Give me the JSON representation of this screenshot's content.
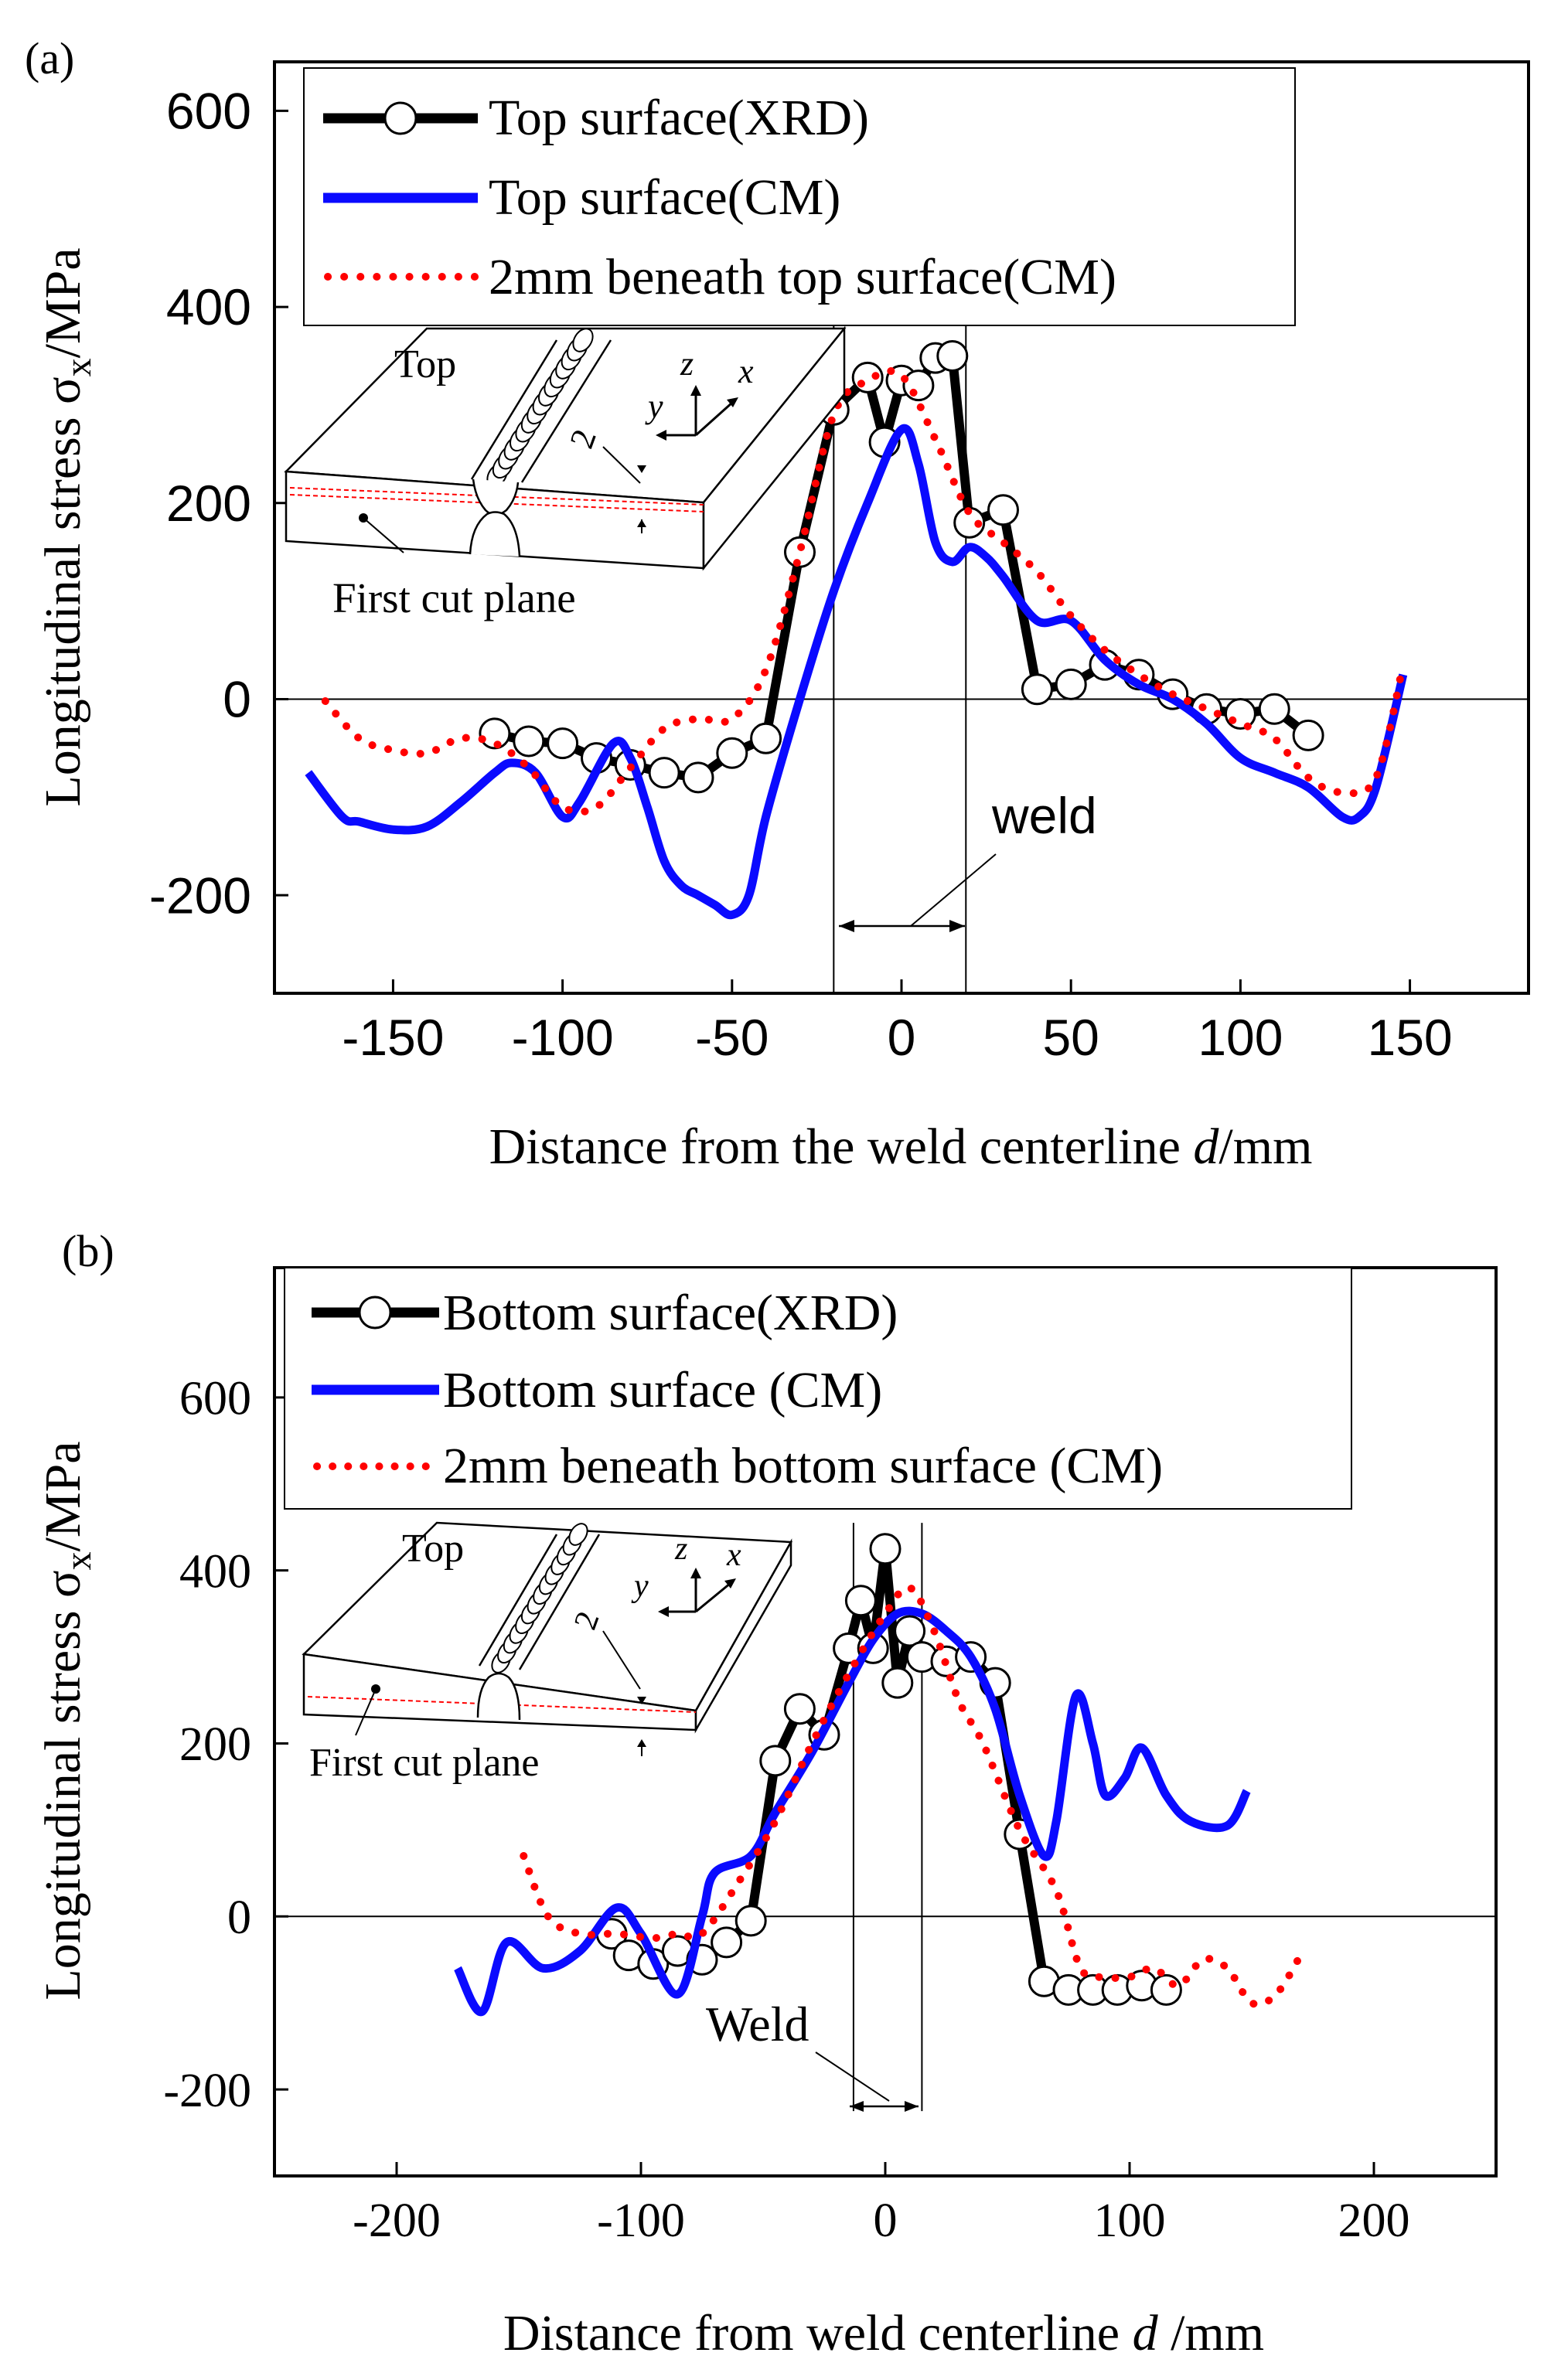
{
  "chart_data": [
    {
      "type": "line",
      "panel_label": "(a)",
      "xlabel_main": "Distance from the weld centerline ",
      "xlabel_var": "d",
      "xlabel_unit": "/mm",
      "ylabel_main": "Longitudinal stress σ",
      "ylabel_sub": "x",
      "ylabel_unit": "/MPa",
      "xlim": [
        -185,
        185
      ],
      "ylim": [
        -300,
        650
      ],
      "xticks": [
        -150,
        -100,
        -50,
        0,
        50,
        100,
        150
      ],
      "xtick_labels": [
        "-150",
        "-100",
        "-50",
        "0",
        "50",
        "100",
        "150"
      ],
      "yticks": [
        -200,
        0,
        200,
        400,
        600
      ],
      "ytick_labels": [
        "-200",
        "0",
        "200",
        "400",
        "600"
      ],
      "weld_lines": [
        -20,
        19
      ],
      "weld_label": "weld",
      "inset": {
        "top_label": "Top",
        "axis_z": "z",
        "axis_x": "x",
        "axis_y": "y",
        "depth_label": "2",
        "cut_plane_label": "First cut plane"
      },
      "legend": {
        "position": "top-left"
      },
      "series": [
        {
          "name": "Top surface(XRD)",
          "style": "line-circles",
          "color": "#000000",
          "points": [
            [
              -120,
              -35
            ],
            [
              -110,
              -43
            ],
            [
              -100,
              -45
            ],
            [
              -90,
              -60
            ],
            [
              -80,
              -67
            ],
            [
              -70,
              -75
            ],
            [
              -60,
              -80
            ],
            [
              -50,
              -55
            ],
            [
              -40,
              -40
            ],
            [
              -30,
              150
            ],
            [
              -20,
              295
            ],
            [
              -10,
              328
            ],
            [
              -5,
              262
            ],
            [
              0,
              325
            ],
            [
              5,
              320
            ],
            [
              10,
              348
            ],
            [
              15,
              350
            ],
            [
              20,
              180
            ],
            [
              30,
              193
            ],
            [
              40,
              10
            ],
            [
              50,
              15
            ],
            [
              60,
              35
            ],
            [
              70,
              25
            ],
            [
              80,
              5
            ],
            [
              90,
              -10
            ],
            [
              100,
              -15
            ],
            [
              110,
              -10
            ],
            [
              120,
              -37
            ]
          ]
        },
        {
          "name": "Top surface(CM)",
          "style": "solid",
          "color": "#0a0aff",
          "points": [
            [
              -175,
              -75
            ],
            [
              -165,
              -120
            ],
            [
              -160,
              -125
            ],
            [
              -150,
              -133
            ],
            [
              -140,
              -130
            ],
            [
              -130,
              -105
            ],
            [
              -120,
              -75
            ],
            [
              -115,
              -65
            ],
            [
              -108,
              -75
            ],
            [
              -100,
              -120
            ],
            [
              -95,
              -105
            ],
            [
              -85,
              -45
            ],
            [
              -80,
              -60
            ],
            [
              -75,
              -110
            ],
            [
              -70,
              -165
            ],
            [
              -65,
              -190
            ],
            [
              -60,
              -200
            ],
            [
              -55,
              -210
            ],
            [
              -50,
              -220
            ],
            [
              -45,
              -200
            ],
            [
              -40,
              -120
            ],
            [
              -30,
              0
            ],
            [
              -20,
              110
            ],
            [
              -10,
              200
            ],
            [
              0,
              275
            ],
            [
              5,
              240
            ],
            [
              10,
              160
            ],
            [
              15,
              140
            ],
            [
              20,
              155
            ],
            [
              25,
              145
            ],
            [
              30,
              125
            ],
            [
              40,
              80
            ],
            [
              50,
              80
            ],
            [
              60,
              40
            ],
            [
              70,
              15
            ],
            [
              80,
              0
            ],
            [
              90,
              -25
            ],
            [
              100,
              -60
            ],
            [
              110,
              -75
            ],
            [
              120,
              -90
            ],
            [
              130,
              -120
            ],
            [
              135,
              -120
            ],
            [
              140,
              -90
            ],
            [
              148,
              25
            ]
          ]
        },
        {
          "name": "2mm beneath top surface(CM)",
          "style": "dotted",
          "color": "#ff0000",
          "points": [
            [
              -170,
              -2
            ],
            [
              -160,
              -40
            ],
            [
              -150,
              -52
            ],
            [
              -140,
              -55
            ],
            [
              -130,
              -40
            ],
            [
              -120,
              -45
            ],
            [
              -110,
              -70
            ],
            [
              -100,
              -110
            ],
            [
              -90,
              -110
            ],
            [
              -80,
              -70
            ],
            [
              -70,
              -30
            ],
            [
              -60,
              -20
            ],
            [
              -50,
              -20
            ],
            [
              -40,
              30
            ],
            [
              -30,
              150
            ],
            [
              -20,
              290
            ],
            [
              -10,
              325
            ],
            [
              0,
              330
            ],
            [
              10,
              265
            ],
            [
              20,
              190
            ],
            [
              30,
              160
            ],
            [
              40,
              130
            ],
            [
              50,
              85
            ],
            [
              60,
              50
            ],
            [
              70,
              25
            ],
            [
              80,
              5
            ],
            [
              90,
              -10
            ],
            [
              100,
              -25
            ],
            [
              110,
              -40
            ],
            [
              120,
              -80
            ],
            [
              130,
              -95
            ],
            [
              140,
              -80
            ],
            [
              148,
              35
            ]
          ]
        }
      ]
    },
    {
      "type": "line",
      "panel_label": "(b)",
      "xlabel_main": "Distance from weld centerline ",
      "xlabel_var": "d",
      "xlabel_unit": " /mm",
      "ylabel_main": "Longitudinal stress σ",
      "ylabel_sub": "x",
      "ylabel_unit": "/MPa",
      "xlim": [
        -250,
        250
      ],
      "ylim": [
        -300,
        750
      ],
      "xticks": [
        -200,
        -100,
        0,
        100,
        200
      ],
      "xtick_labels": [
        "-200",
        "-100",
        "0",
        "100",
        "200"
      ],
      "yticks": [
        -200,
        0,
        200,
        400,
        600
      ],
      "ytick_labels": [
        "-200",
        "0",
        "200",
        "400",
        "600"
      ],
      "weld_lines": [
        -13,
        15
      ],
      "weld_label": "Weld",
      "inset": {
        "top_label": "Top",
        "axis_z": "z",
        "axis_x": "x",
        "axis_y": "y",
        "depth_label": "2",
        "cut_plane_label": "First cut plane"
      },
      "legend": {
        "position": "top-left"
      },
      "series": [
        {
          "name": "Bottom surface(XRD)",
          "style": "line-circles",
          "color": "#000000",
          "points": [
            [
              -112,
              -20
            ],
            [
              -105,
              -45
            ],
            [
              -95,
              -55
            ],
            [
              -85,
              -40
            ],
            [
              -75,
              -50
            ],
            [
              -65,
              -30
            ],
            [
              -55,
              -5
            ],
            [
              -45,
              180
            ],
            [
              -35,
              240
            ],
            [
              -25,
              210
            ],
            [
              -15,
              310
            ],
            [
              -10,
              365
            ],
            [
              -5,
              310
            ],
            [
              0,
              425
            ],
            [
              5,
              270
            ],
            [
              10,
              330
            ],
            [
              15,
              300
            ],
            [
              25,
              295
            ],
            [
              35,
              300
            ],
            [
              45,
              270
            ],
            [
              55,
              95
            ],
            [
              65,
              -75
            ],
            [
              75,
              -85
            ],
            [
              85,
              -85
            ],
            [
              95,
              -85
            ],
            [
              105,
              -80
            ],
            [
              115,
              -85
            ]
          ]
        },
        {
          "name": "Bottom surface (CM)",
          "style": "solid",
          "color": "#0a0aff",
          "points": [
            [
              -175,
              -60
            ],
            [
              -165,
              -110
            ],
            [
              -155,
              -30
            ],
            [
              -140,
              -60
            ],
            [
              -125,
              -40
            ],
            [
              -110,
              10
            ],
            [
              -100,
              -20
            ],
            [
              -85,
              -90
            ],
            [
              -75,
              0
            ],
            [
              -70,
              50
            ],
            [
              -55,
              70
            ],
            [
              -45,
              120
            ],
            [
              -30,
              190
            ],
            [
              -15,
              270
            ],
            [
              -5,
              320
            ],
            [
              5,
              350
            ],
            [
              15,
              350
            ],
            [
              25,
              330
            ],
            [
              35,
              300
            ],
            [
              45,
              240
            ],
            [
              55,
              140
            ],
            [
              65,
              70
            ],
            [
              70,
              110
            ],
            [
              78,
              255
            ],
            [
              85,
              200
            ],
            [
              90,
              140
            ],
            [
              98,
              160
            ],
            [
              105,
              195
            ],
            [
              115,
              140
            ],
            [
              125,
              110
            ],
            [
              140,
              105
            ],
            [
              148,
              145
            ]
          ]
        },
        {
          "name": "2mm beneath bottom surface (CM)",
          "style": "dotted",
          "color": "#ff0000",
          "points": [
            [
              -148,
              70
            ],
            [
              -138,
              0
            ],
            [
              -125,
              -20
            ],
            [
              -110,
              -20
            ],
            [
              -95,
              -25
            ],
            [
              -85,
              -20
            ],
            [
              -75,
              -20
            ],
            [
              -60,
              40
            ],
            [
              -45,
              110
            ],
            [
              -30,
              200
            ],
            [
              -15,
              280
            ],
            [
              0,
              350
            ],
            [
              10,
              380
            ],
            [
              20,
              330
            ],
            [
              30,
              250
            ],
            [
              40,
              200
            ],
            [
              55,
              100
            ],
            [
              70,
              30
            ],
            [
              80,
              -60
            ],
            [
              90,
              -70
            ],
            [
              100,
              -70
            ],
            [
              110,
              -60
            ],
            [
              120,
              -80
            ],
            [
              130,
              -50
            ],
            [
              140,
              -60
            ],
            [
              150,
              -100
            ],
            [
              160,
              -90
            ],
            [
              170,
              -45
            ]
          ]
        }
      ]
    }
  ]
}
